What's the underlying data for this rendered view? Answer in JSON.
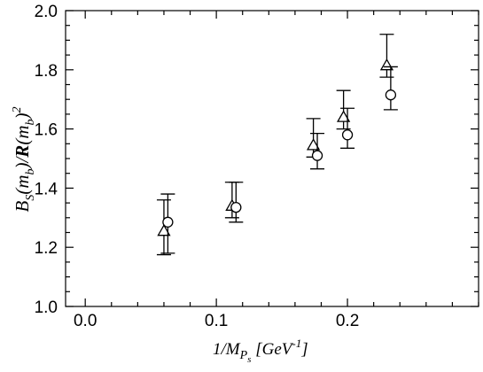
{
  "chart_data": {
    "type": "scatter",
    "xlim": [
      -0.015,
      0.3
    ],
    "ylim": [
      1.0,
      2.0
    ],
    "x_ticks": [
      0.0,
      0.1,
      0.2
    ],
    "x_tick_labels": [
      "0.0",
      "0.1",
      "0.2"
    ],
    "y_ticks": [
      1.0,
      1.2,
      1.4,
      1.6,
      1.8,
      2.0
    ],
    "y_tick_labels": [
      "1.0",
      "1.2",
      "1.4",
      "1.6",
      "1.8",
      "2.0"
    ],
    "x_minor_step": 0.02,
    "y_minor_step": 0.05,
    "xlabel": "1/M_Ps [GeV^-1]",
    "ylabel": "B_S(m_b)/R(m_b)^2",
    "grid": false,
    "legend": false,
    "series": [
      {
        "marker": "triangle",
        "points": [
          {
            "x": 0.06,
            "y": 1.255,
            "err_minus": 0.08,
            "err_plus": 0.105
          },
          {
            "x": 0.112,
            "y": 1.34,
            "err_minus": 0.04,
            "err_plus": 0.08
          },
          {
            "x": 0.174,
            "y": 1.545,
            "err_minus": 0.04,
            "err_plus": 0.09
          },
          {
            "x": 0.197,
            "y": 1.64,
            "err_minus": 0.04,
            "err_plus": 0.09
          },
          {
            "x": 0.23,
            "y": 1.815,
            "err_minus": 0.04,
            "err_plus": 0.105
          }
        ]
      },
      {
        "marker": "circle",
        "points": [
          {
            "x": 0.063,
            "y": 1.285,
            "err_minus": 0.105,
            "err_plus": 0.095
          },
          {
            "x": 0.115,
            "y": 1.335,
            "err_minus": 0.05,
            "err_plus": 0.085
          },
          {
            "x": 0.177,
            "y": 1.51,
            "err_minus": 0.045,
            "err_plus": 0.075
          },
          {
            "x": 0.2,
            "y": 1.58,
            "err_minus": 0.045,
            "err_plus": 0.09
          },
          {
            "x": 0.233,
            "y": 1.715,
            "err_minus": 0.05,
            "err_plus": 0.095
          }
        ]
      }
    ]
  }
}
